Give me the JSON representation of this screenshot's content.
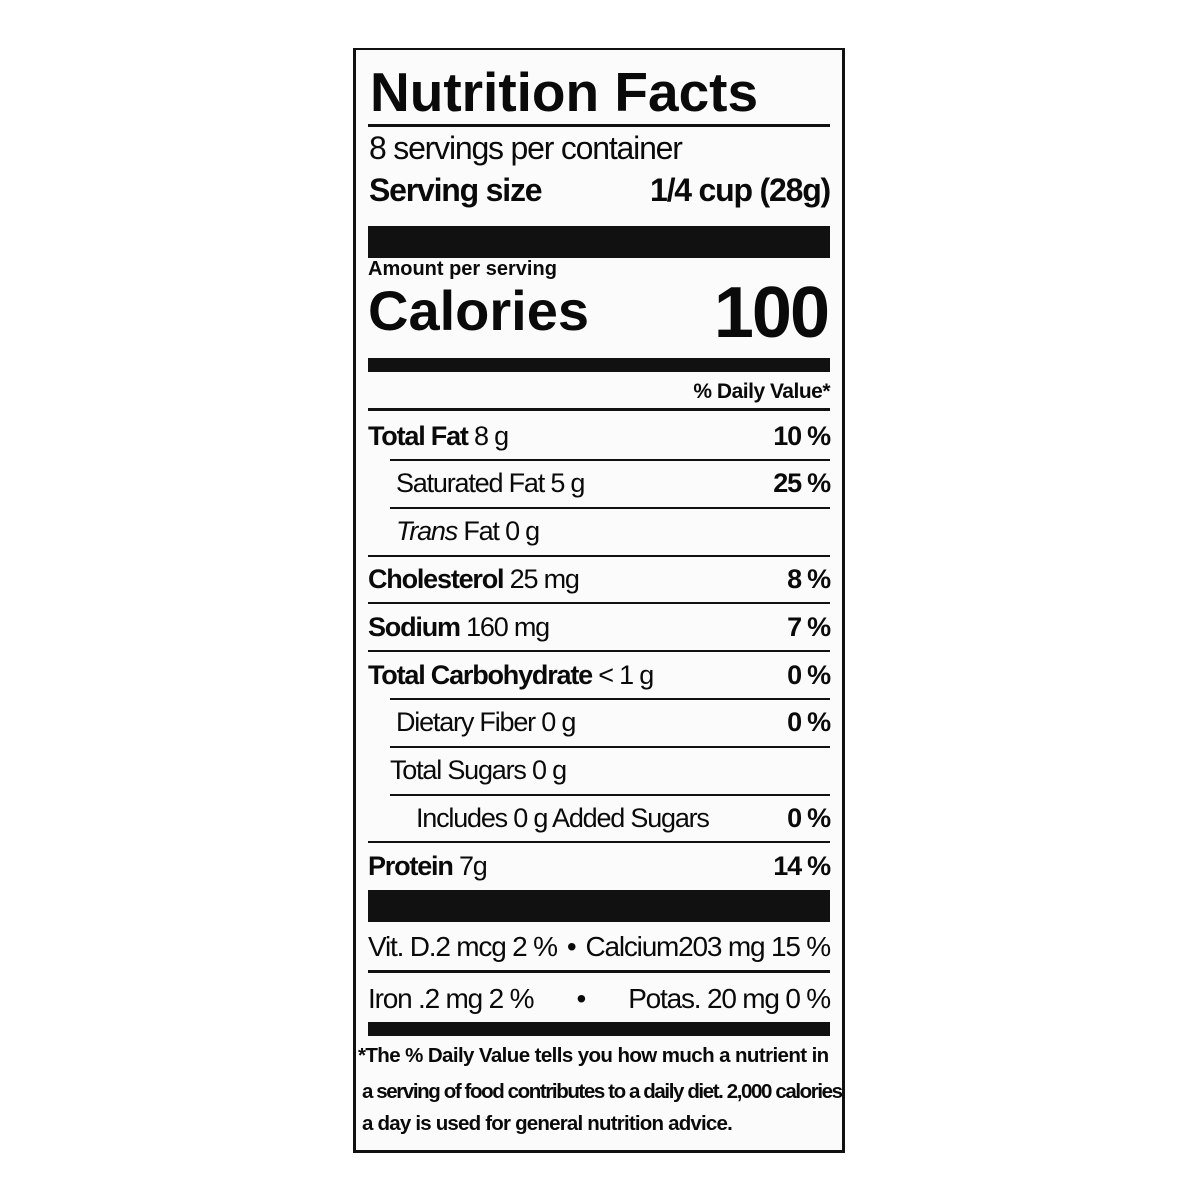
{
  "title": "Nutrition Facts",
  "servings_per_container": "8 servings per container",
  "serving_size": {
    "label": "Serving size",
    "value": "1/4 cup (28g)"
  },
  "amount_per_serving": "Amount per serving",
  "calories": {
    "label": "Calories",
    "value": "100"
  },
  "daily_value_header": "% Daily Value*",
  "nutrients": [
    {
      "name": "Total Fat",
      "amount": "8 g",
      "dv": "10 %",
      "bold": true,
      "indent": 0
    },
    {
      "name": "Saturated Fat",
      "amount": "5 g",
      "dv": "25 %",
      "bold": false,
      "indent": 1
    },
    {
      "name": "Trans",
      "name_suffix": "Fat",
      "amount": "0 g",
      "dv": "",
      "bold": false,
      "indent": 1
    },
    {
      "name": "Cholesterol",
      "amount": "25 mg",
      "dv": "8 %",
      "bold": true,
      "indent": 0
    },
    {
      "name": "Sodium",
      "amount": "160 mg",
      "dv": "7 %",
      "bold": true,
      "indent": 0
    },
    {
      "name": "Total Carbohydrate",
      "amount": "< 1 g",
      "dv": "0 %",
      "bold": true,
      "indent": 0
    },
    {
      "name": "Dietary Fiber",
      "amount": "0 g",
      "dv": "0 %",
      "bold": false,
      "indent": 1
    },
    {
      "name": "Total Sugars",
      "amount": "0 g",
      "dv": "",
      "bold": false,
      "indent": 1
    },
    {
      "name": "Includes 0 g Added Sugars",
      "amount": "",
      "dv": "0 %",
      "bold": false,
      "indent": 2
    },
    {
      "name": "Protein",
      "amount": "7g",
      "dv": "14 %",
      "bold": true,
      "indent": 0
    }
  ],
  "vitamins": [
    {
      "left": "Vit. D.2 mcg 2 %",
      "bullet": "•",
      "right": "Calcium203 mg 15 %"
    },
    {
      "left": "Iron .2 mg 2 %",
      "bullet": "•",
      "right": "Potas. 20 mg 0 %"
    }
  ],
  "footnote": [
    "*The % Daily Value tells you how much a nutrient in",
    "a serving of food contributes to a daily diet. 2,000 calories",
    "a day is used for general nutrition advice."
  ]
}
